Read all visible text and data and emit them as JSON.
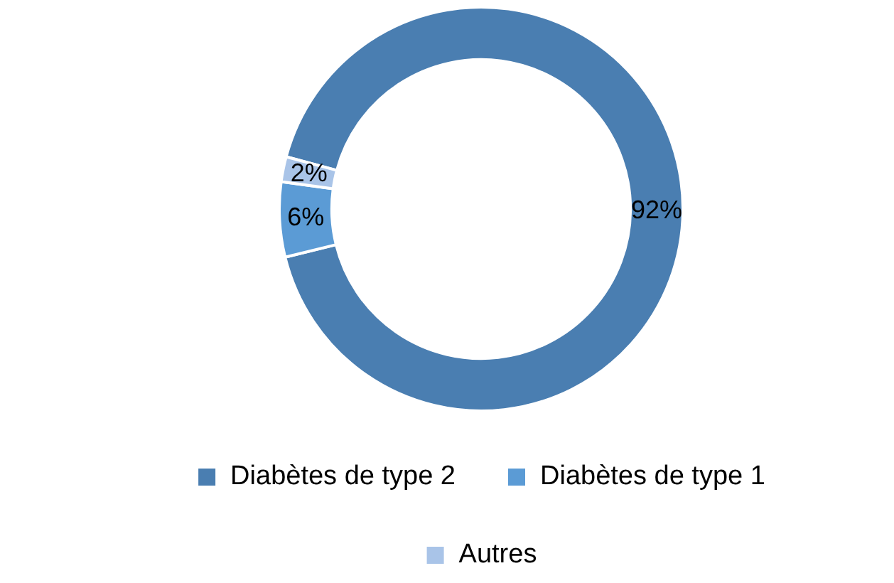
{
  "chart_data": {
    "type": "donut",
    "categories": [
      "Diabètes de type 2",
      "Diabètes de type 1",
      "Autres"
    ],
    "values": [
      92,
      6,
      2
    ],
    "colors": [
      "#4a7eb1",
      "#5b9bd5",
      "#a9c4e8"
    ],
    "value_labels": [
      "92%",
      "6%",
      "2%"
    ],
    "legend": "bottom"
  }
}
